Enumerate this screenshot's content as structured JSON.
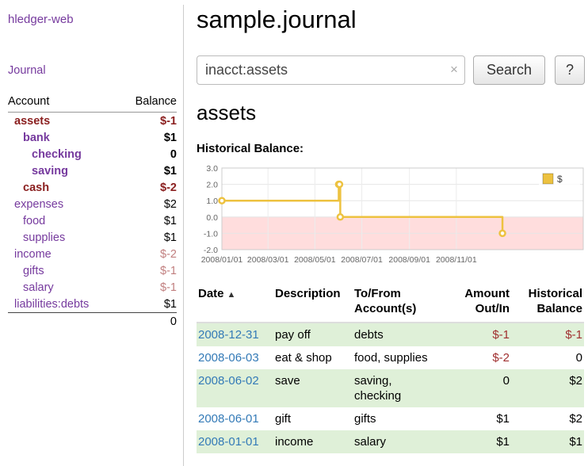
{
  "colors": {
    "link": "#763a9e",
    "neg_strong": "#8b2020",
    "neg_soft": "#c17f7f",
    "neg_table": "#a03030",
    "date_link": "#337ab7",
    "stripe": "#dff0d8",
    "chart_line": "#edc240",
    "chart_negative_fill": "#ffdddd"
  },
  "sidebar": {
    "brand": "hledger-web",
    "journal_link": "Journal",
    "header": {
      "account": "Account",
      "balance": "Balance"
    },
    "accounts": [
      {
        "name": "assets",
        "balance": "$-1",
        "indent": 1,
        "bold": true,
        "name_tone": "neg-strong",
        "balance_tone": "neg-strong"
      },
      {
        "name": "bank",
        "balance": "$1",
        "indent": 2,
        "bold": true,
        "name_tone": "link",
        "balance_tone": "normal"
      },
      {
        "name": "checking",
        "balance": "0",
        "indent": 3,
        "bold": true,
        "name_tone": "link",
        "balance_tone": "normal"
      },
      {
        "name": "saving",
        "balance": "$1",
        "indent": 3,
        "bold": true,
        "name_tone": "link",
        "balance_tone": "normal"
      },
      {
        "name": "cash",
        "balance": "$-2",
        "indent": 2,
        "bold": true,
        "name_tone": "neg-strong",
        "balance_tone": "neg-strong"
      },
      {
        "name": "expenses",
        "balance": "$2",
        "indent": 1,
        "bold": false,
        "name_tone": "link",
        "balance_tone": "normal"
      },
      {
        "name": "food",
        "balance": "$1",
        "indent": 2,
        "bold": false,
        "name_tone": "link",
        "balance_tone": "normal"
      },
      {
        "name": "supplies",
        "balance": "$1",
        "indent": 2,
        "bold": false,
        "name_tone": "link",
        "balance_tone": "normal"
      },
      {
        "name": "income",
        "balance": "$-2",
        "indent": 1,
        "bold": false,
        "name_tone": "link",
        "balance_tone": "neg-soft"
      },
      {
        "name": "gifts",
        "balance": "$-1",
        "indent": 2,
        "bold": false,
        "name_tone": "link",
        "balance_tone": "neg-soft"
      },
      {
        "name": "salary",
        "balance": "$-1",
        "indent": 2,
        "bold": false,
        "name_tone": "link",
        "balance_tone": "neg-soft"
      },
      {
        "name": "liabilities:debts",
        "balance": "$1",
        "indent": 1,
        "bold": false,
        "name_tone": "link",
        "balance_tone": "normal"
      }
    ],
    "total": "0"
  },
  "main": {
    "title": "sample.journal",
    "search": {
      "value": "inacct:assets",
      "clear_icon": "×",
      "button_label": "Search",
      "help_label": "?"
    },
    "account_heading": "assets",
    "chart_title": "Historical Balance:"
  },
  "chart_data": {
    "type": "line",
    "step": true,
    "title": "Historical Balance:",
    "series": [
      {
        "name": "$",
        "x": [
          "2008/01/01",
          "2008/06/01",
          "2008/06/02",
          "2008/06/03",
          "2008/12/31"
        ],
        "values": [
          1,
          2,
          2,
          0,
          -1
        ]
      }
    ],
    "xticks": [
      "2008/01/01",
      "2008/03/01",
      "2008/05/01",
      "2008/07/01",
      "2008/09/01",
      "2008/11/01"
    ],
    "yticks": [
      3.0,
      2.0,
      1.0,
      0.0,
      -1.0,
      -2.0
    ],
    "ylim": [
      -2.0,
      3.0
    ],
    "grid": true,
    "legend": {
      "position": "top-right",
      "label": "$"
    }
  },
  "register": {
    "headers": [
      {
        "label": "Date",
        "sort": "▲",
        "align": "left"
      },
      {
        "label": "Description",
        "align": "left"
      },
      {
        "label": "To/From\nAccount(s)",
        "align": "left"
      },
      {
        "label": "Amount\nOut/In",
        "align": "right"
      },
      {
        "label": "Historical\nBalance",
        "align": "right"
      }
    ],
    "rows": [
      {
        "date": "2008-12-31",
        "description": "pay off",
        "accounts": "debts",
        "amount": "$-1",
        "amount_neg": true,
        "balance": "$-1",
        "balance_neg": true,
        "striped": true
      },
      {
        "date": "2008-06-03",
        "description": "eat & shop",
        "accounts": "food, supplies",
        "amount": "$-2",
        "amount_neg": true,
        "balance": "0",
        "balance_neg": false,
        "striped": false
      },
      {
        "date": "2008-06-02",
        "description": "save",
        "accounts": "saving,\nchecking",
        "amount": "0",
        "amount_neg": false,
        "balance": "$2",
        "balance_neg": false,
        "striped": true
      },
      {
        "date": "2008-06-01",
        "description": "gift",
        "accounts": "gifts",
        "amount": "$1",
        "amount_neg": false,
        "balance": "$2",
        "balance_neg": false,
        "striped": false
      },
      {
        "date": "2008-01-01",
        "description": "income",
        "accounts": "salary",
        "amount": "$1",
        "amount_neg": false,
        "balance": "$1",
        "balance_neg": false,
        "striped": true
      }
    ]
  }
}
